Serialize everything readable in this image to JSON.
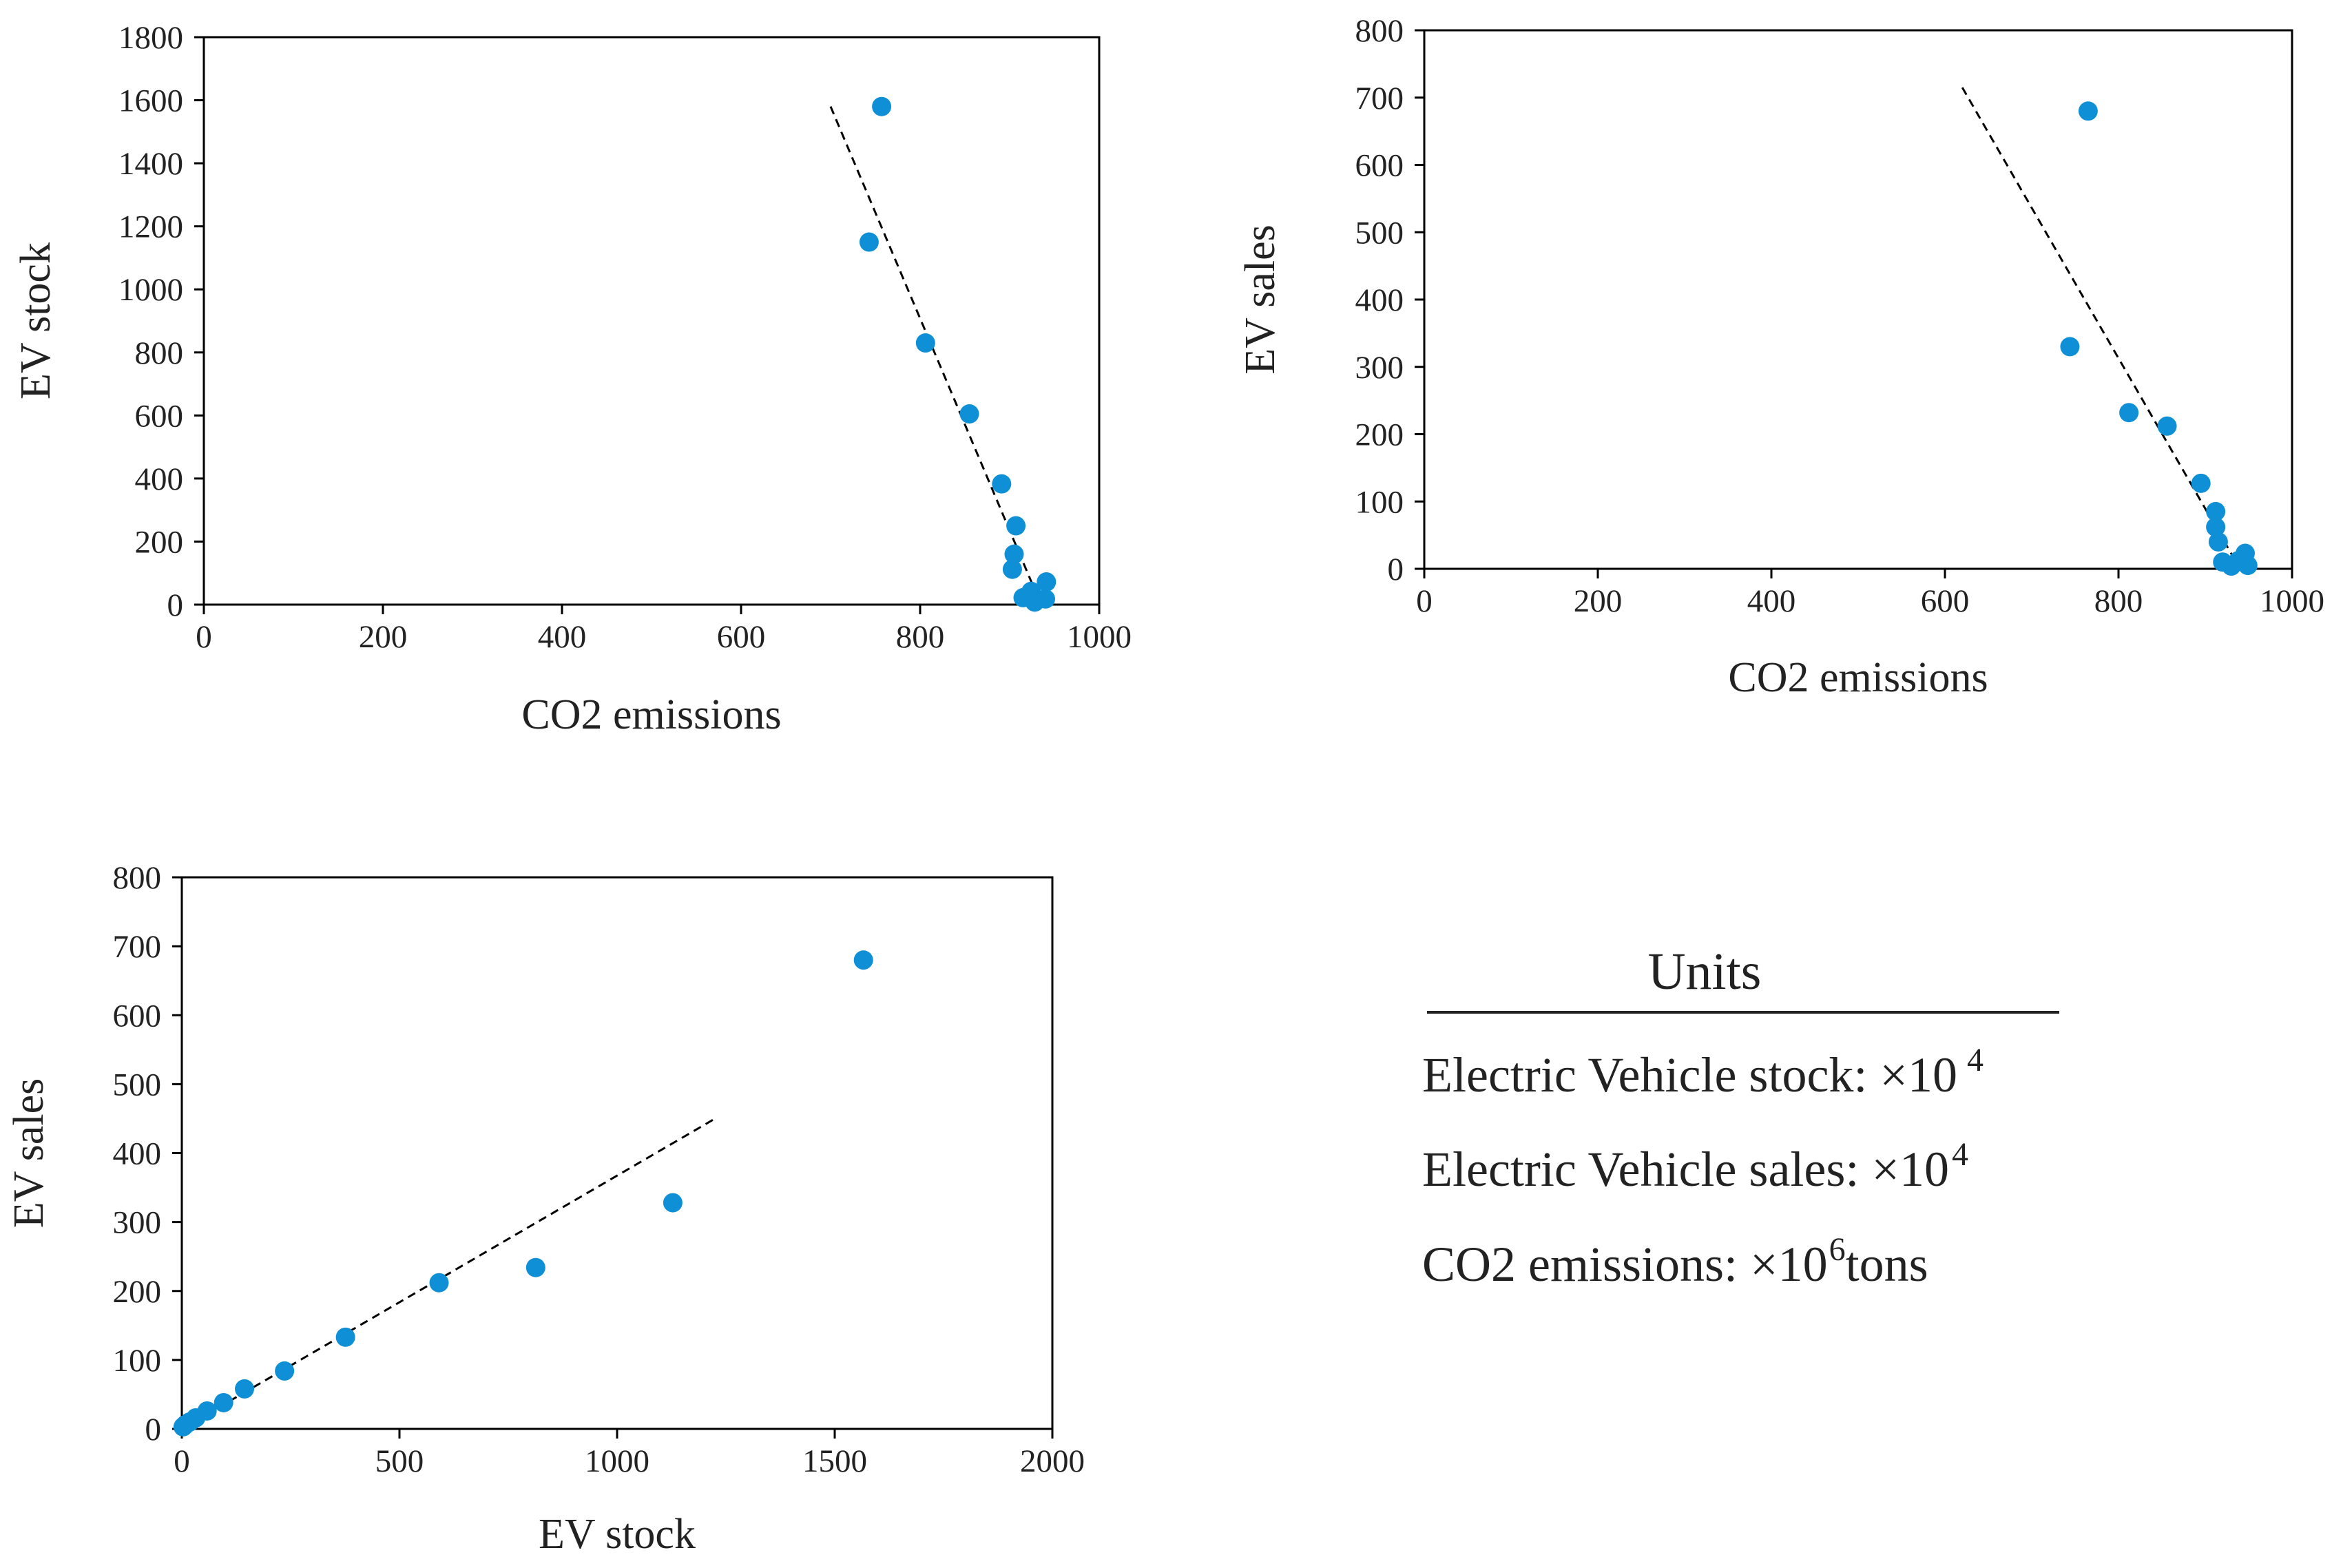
{
  "colors": {
    "point": "#0f8fd6",
    "axis": "#000000",
    "fit": "#000000"
  },
  "chart_data": [
    {
      "type": "scatter",
      "id": "stock-vs-co2",
      "xlabel": "CO2 emissions",
      "ylabel": "EV stock",
      "xlim": [
        0,
        1000
      ],
      "ylim": [
        0,
        1800
      ],
      "xticks": [
        0,
        200,
        400,
        600,
        800,
        1000
      ],
      "yticks": [
        0,
        200,
        400,
        600,
        800,
        1000,
        1200,
        1400,
        1600,
        1800
      ],
      "points": [
        {
          "x": 757,
          "y": 1580
        },
        {
          "x": 743,
          "y": 1150
        },
        {
          "x": 806,
          "y": 830
        },
        {
          "x": 855,
          "y": 605
        },
        {
          "x": 891,
          "y": 383
        },
        {
          "x": 907,
          "y": 250
        },
        {
          "x": 905,
          "y": 160
        },
        {
          "x": 903,
          "y": 112
        },
        {
          "x": 941,
          "y": 72
        },
        {
          "x": 924,
          "y": 42
        },
        {
          "x": 915,
          "y": 22
        },
        {
          "x": 940,
          "y": 18
        },
        {
          "x": 928,
          "y": 8
        }
      ],
      "fit_line": {
        "x": [
          700,
          935
        ],
        "y": [
          1580,
          0
        ]
      }
    },
    {
      "type": "scatter",
      "id": "sales-vs-co2",
      "xlabel": "CO2 emissions",
      "ylabel": "EV sales",
      "xlim": [
        0,
        1000
      ],
      "ylim": [
        0,
        800
      ],
      "xticks": [
        0,
        200,
        400,
        600,
        800,
        1000
      ],
      "yticks": [
        0,
        100,
        200,
        300,
        400,
        500,
        600,
        700,
        800
      ],
      "points": [
        {
          "x": 765,
          "y": 680
        },
        {
          "x": 744,
          "y": 330
        },
        {
          "x": 812,
          "y": 232
        },
        {
          "x": 856,
          "y": 212
        },
        {
          "x": 895,
          "y": 127
        },
        {
          "x": 912,
          "y": 85
        },
        {
          "x": 912,
          "y": 62
        },
        {
          "x": 915,
          "y": 40
        },
        {
          "x": 946,
          "y": 23
        },
        {
          "x": 920,
          "y": 10
        },
        {
          "x": 938,
          "y": 12
        },
        {
          "x": 949,
          "y": 5
        },
        {
          "x": 930,
          "y": 4
        }
      ],
      "fit_line": {
        "x": [
          620,
          940
        ],
        "y": [
          715,
          0
        ]
      }
    },
    {
      "type": "scatter",
      "id": "sales-vs-stock",
      "xlabel": "EV stock",
      "ylabel": "EV sales",
      "xlim": [
        0,
        2000
      ],
      "ylim": [
        0,
        800
      ],
      "xticks": [
        0,
        500,
        1000,
        1500,
        2000
      ],
      "yticks": [
        0,
        100,
        200,
        300,
        400,
        500,
        600,
        700,
        800
      ],
      "points": [
        {
          "x": 1566,
          "y": 680
        },
        {
          "x": 1128,
          "y": 328
        },
        {
          "x": 813,
          "y": 234
        },
        {
          "x": 591,
          "y": 212
        },
        {
          "x": 376,
          "y": 133
        },
        {
          "x": 236,
          "y": 84
        },
        {
          "x": 144,
          "y": 58
        },
        {
          "x": 96,
          "y": 38
        },
        {
          "x": 58,
          "y": 26
        },
        {
          "x": 32,
          "y": 16
        },
        {
          "x": 18,
          "y": 10
        },
        {
          "x": 8,
          "y": 6
        },
        {
          "x": 3,
          "y": 3
        }
      ],
      "fit_line": {
        "x": [
          0,
          1225
        ],
        "y": [
          0,
          450
        ]
      }
    }
  ],
  "units": {
    "title": "Units",
    "lines": [
      {
        "label": "Electric Vehicle stock: ×10",
        "exp": "4",
        "suffix": ""
      },
      {
        "label": "Electric Vehicle sales: ×10",
        "exp": "4",
        "suffix": ""
      },
      {
        "label": "CO2 emissions: ×10",
        "exp": "6",
        "suffix": "tons"
      }
    ]
  }
}
